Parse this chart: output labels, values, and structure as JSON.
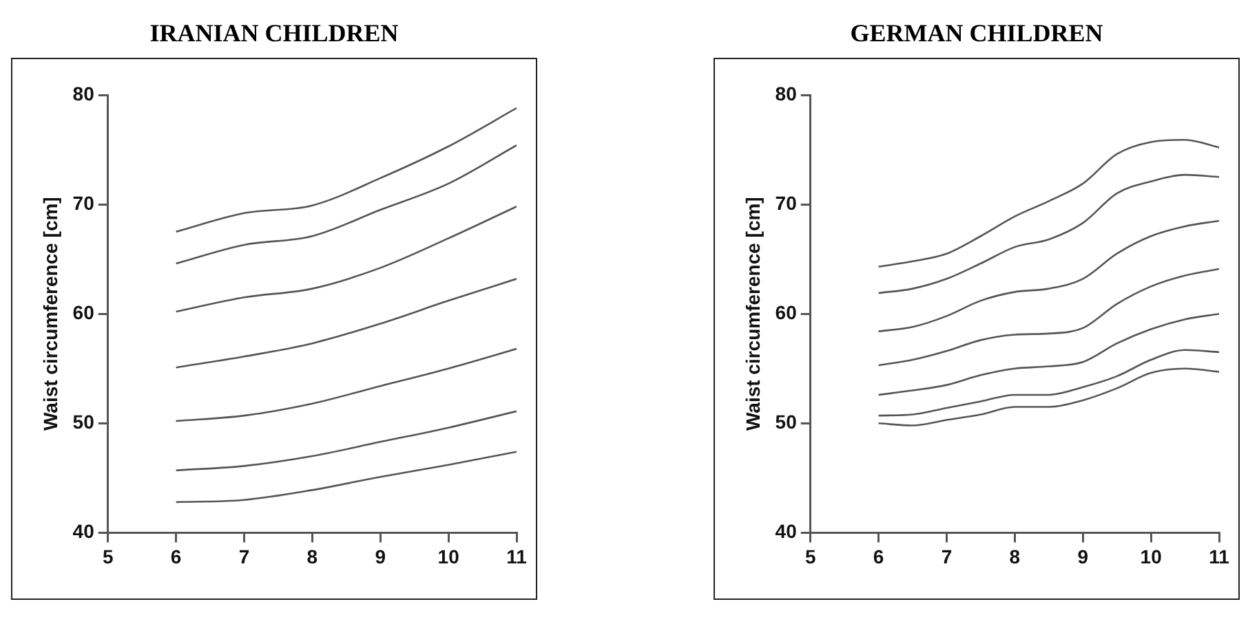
{
  "chart_data": [
    {
      "type": "line",
      "title": "IRANIAN CHILDREN",
      "ylabel": "Waist circumference [cm]",
      "x": [
        6,
        7,
        8,
        9,
        10,
        11
      ],
      "xlim": [
        5,
        11
      ],
      "xticks": [
        5,
        6,
        7,
        8,
        9,
        10,
        11
      ],
      "ylim": [
        40,
        80
      ],
      "yticks": [
        40,
        50,
        60,
        70,
        80
      ],
      "marker": "none",
      "line_style": "solid",
      "legend": false,
      "series": [
        {
          "color": "#555555",
          "values": [
            67.5,
            69.2,
            69.9,
            72.4,
            75.3,
            78.8
          ]
        },
        {
          "color": "#555555",
          "values": [
            64.6,
            66.3,
            67.1,
            69.5,
            71.9,
            75.4
          ]
        },
        {
          "color": "#555555",
          "values": [
            60.2,
            61.5,
            62.3,
            64.2,
            66.9,
            69.8
          ]
        },
        {
          "color": "#555555",
          "values": [
            55.1,
            56.1,
            57.3,
            59.1,
            61.2,
            63.2
          ]
        },
        {
          "color": "#555555",
          "values": [
            50.2,
            50.7,
            51.8,
            53.4,
            55.0,
            56.8
          ]
        },
        {
          "color": "#555555",
          "values": [
            45.7,
            46.1,
            47.0,
            48.3,
            49.6,
            51.1
          ]
        },
        {
          "color": "#555555",
          "values": [
            42.8,
            43.0,
            43.9,
            45.1,
            46.2,
            47.4
          ]
        }
      ]
    },
    {
      "type": "line",
      "title": "GERMAN CHILDREN",
      "ylabel": "Waist circumference [cm]",
      "x": [
        6,
        6.5,
        7,
        7.5,
        8,
        8.5,
        9,
        9.5,
        10,
        10.5,
        11
      ],
      "xlim": [
        5,
        11
      ],
      "xticks": [
        5,
        6,
        7,
        8,
        9,
        10,
        11
      ],
      "ylim": [
        40,
        80
      ],
      "yticks": [
        40,
        50,
        60,
        70,
        80
      ],
      "marker": "none",
      "line_style": "solid",
      "legend": false,
      "series": [
        {
          "color": "#555555",
          "values": [
            64.3,
            64.8,
            65.5,
            67.1,
            68.9,
            70.3,
            71.9,
            74.6,
            75.7,
            75.9,
            75.2
          ]
        },
        {
          "color": "#555555",
          "values": [
            61.9,
            62.3,
            63.2,
            64.6,
            66.1,
            66.8,
            68.3,
            71.0,
            72.1,
            72.7,
            72.5
          ]
        },
        {
          "color": "#555555",
          "values": [
            58.4,
            58.8,
            59.8,
            61.2,
            62.0,
            62.3,
            63.2,
            65.5,
            67.1,
            68.0,
            68.5
          ]
        },
        {
          "color": "#555555",
          "values": [
            55.3,
            55.8,
            56.6,
            57.6,
            58.1,
            58.2,
            58.7,
            60.9,
            62.5,
            63.5,
            64.1
          ]
        },
        {
          "color": "#555555",
          "values": [
            52.6,
            53.0,
            53.5,
            54.4,
            55.0,
            55.2,
            55.6,
            57.3,
            58.6,
            59.5,
            60.0
          ]
        },
        {
          "color": "#555555",
          "values": [
            50.7,
            50.8,
            51.4,
            52.0,
            52.6,
            52.6,
            53.3,
            54.3,
            55.8,
            56.7,
            56.5
          ]
        },
        {
          "color": "#555555",
          "values": [
            50.0,
            49.8,
            50.3,
            50.8,
            51.5,
            51.5,
            52.1,
            53.2,
            54.6,
            55.0,
            54.7
          ]
        }
      ]
    }
  ]
}
